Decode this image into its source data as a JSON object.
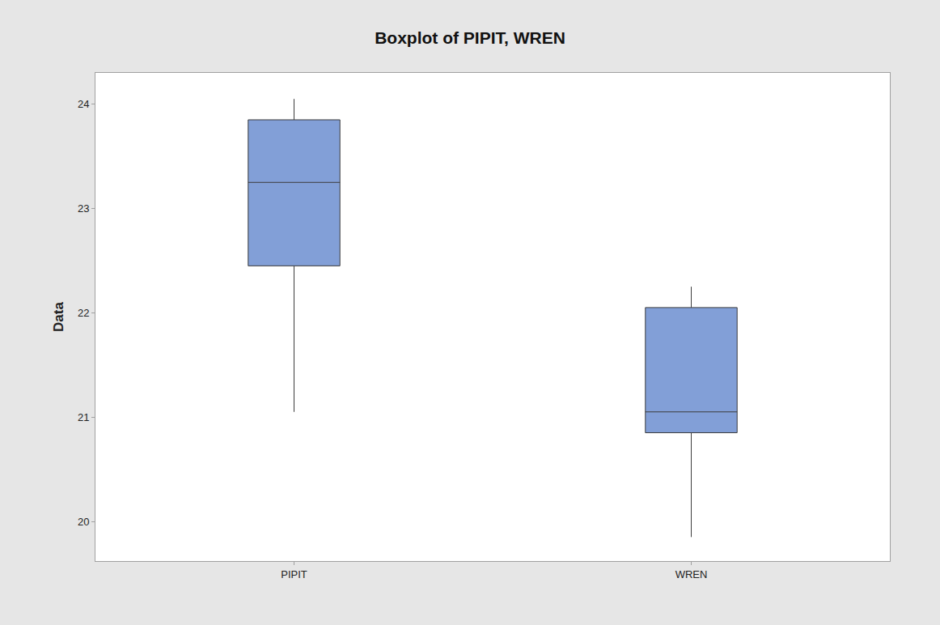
{
  "chart_data": {
    "type": "box",
    "title": "Boxplot of PIPIT, WREN",
    "y_label": "Data",
    "categories": [
      "PIPIT",
      "WREN"
    ],
    "min": [
      21.05,
      19.85
    ],
    "q1": [
      22.45,
      20.85
    ],
    "median": [
      23.25,
      21.05
    ],
    "q3": [
      23.85,
      22.05
    ],
    "max": [
      24.05,
      22.25
    ],
    "color": "#829fd7",
    "ylim": [
      19.62,
      24.3
    ],
    "yticks": [
      20,
      21,
      22,
      23,
      24
    ],
    "grid": false
  }
}
